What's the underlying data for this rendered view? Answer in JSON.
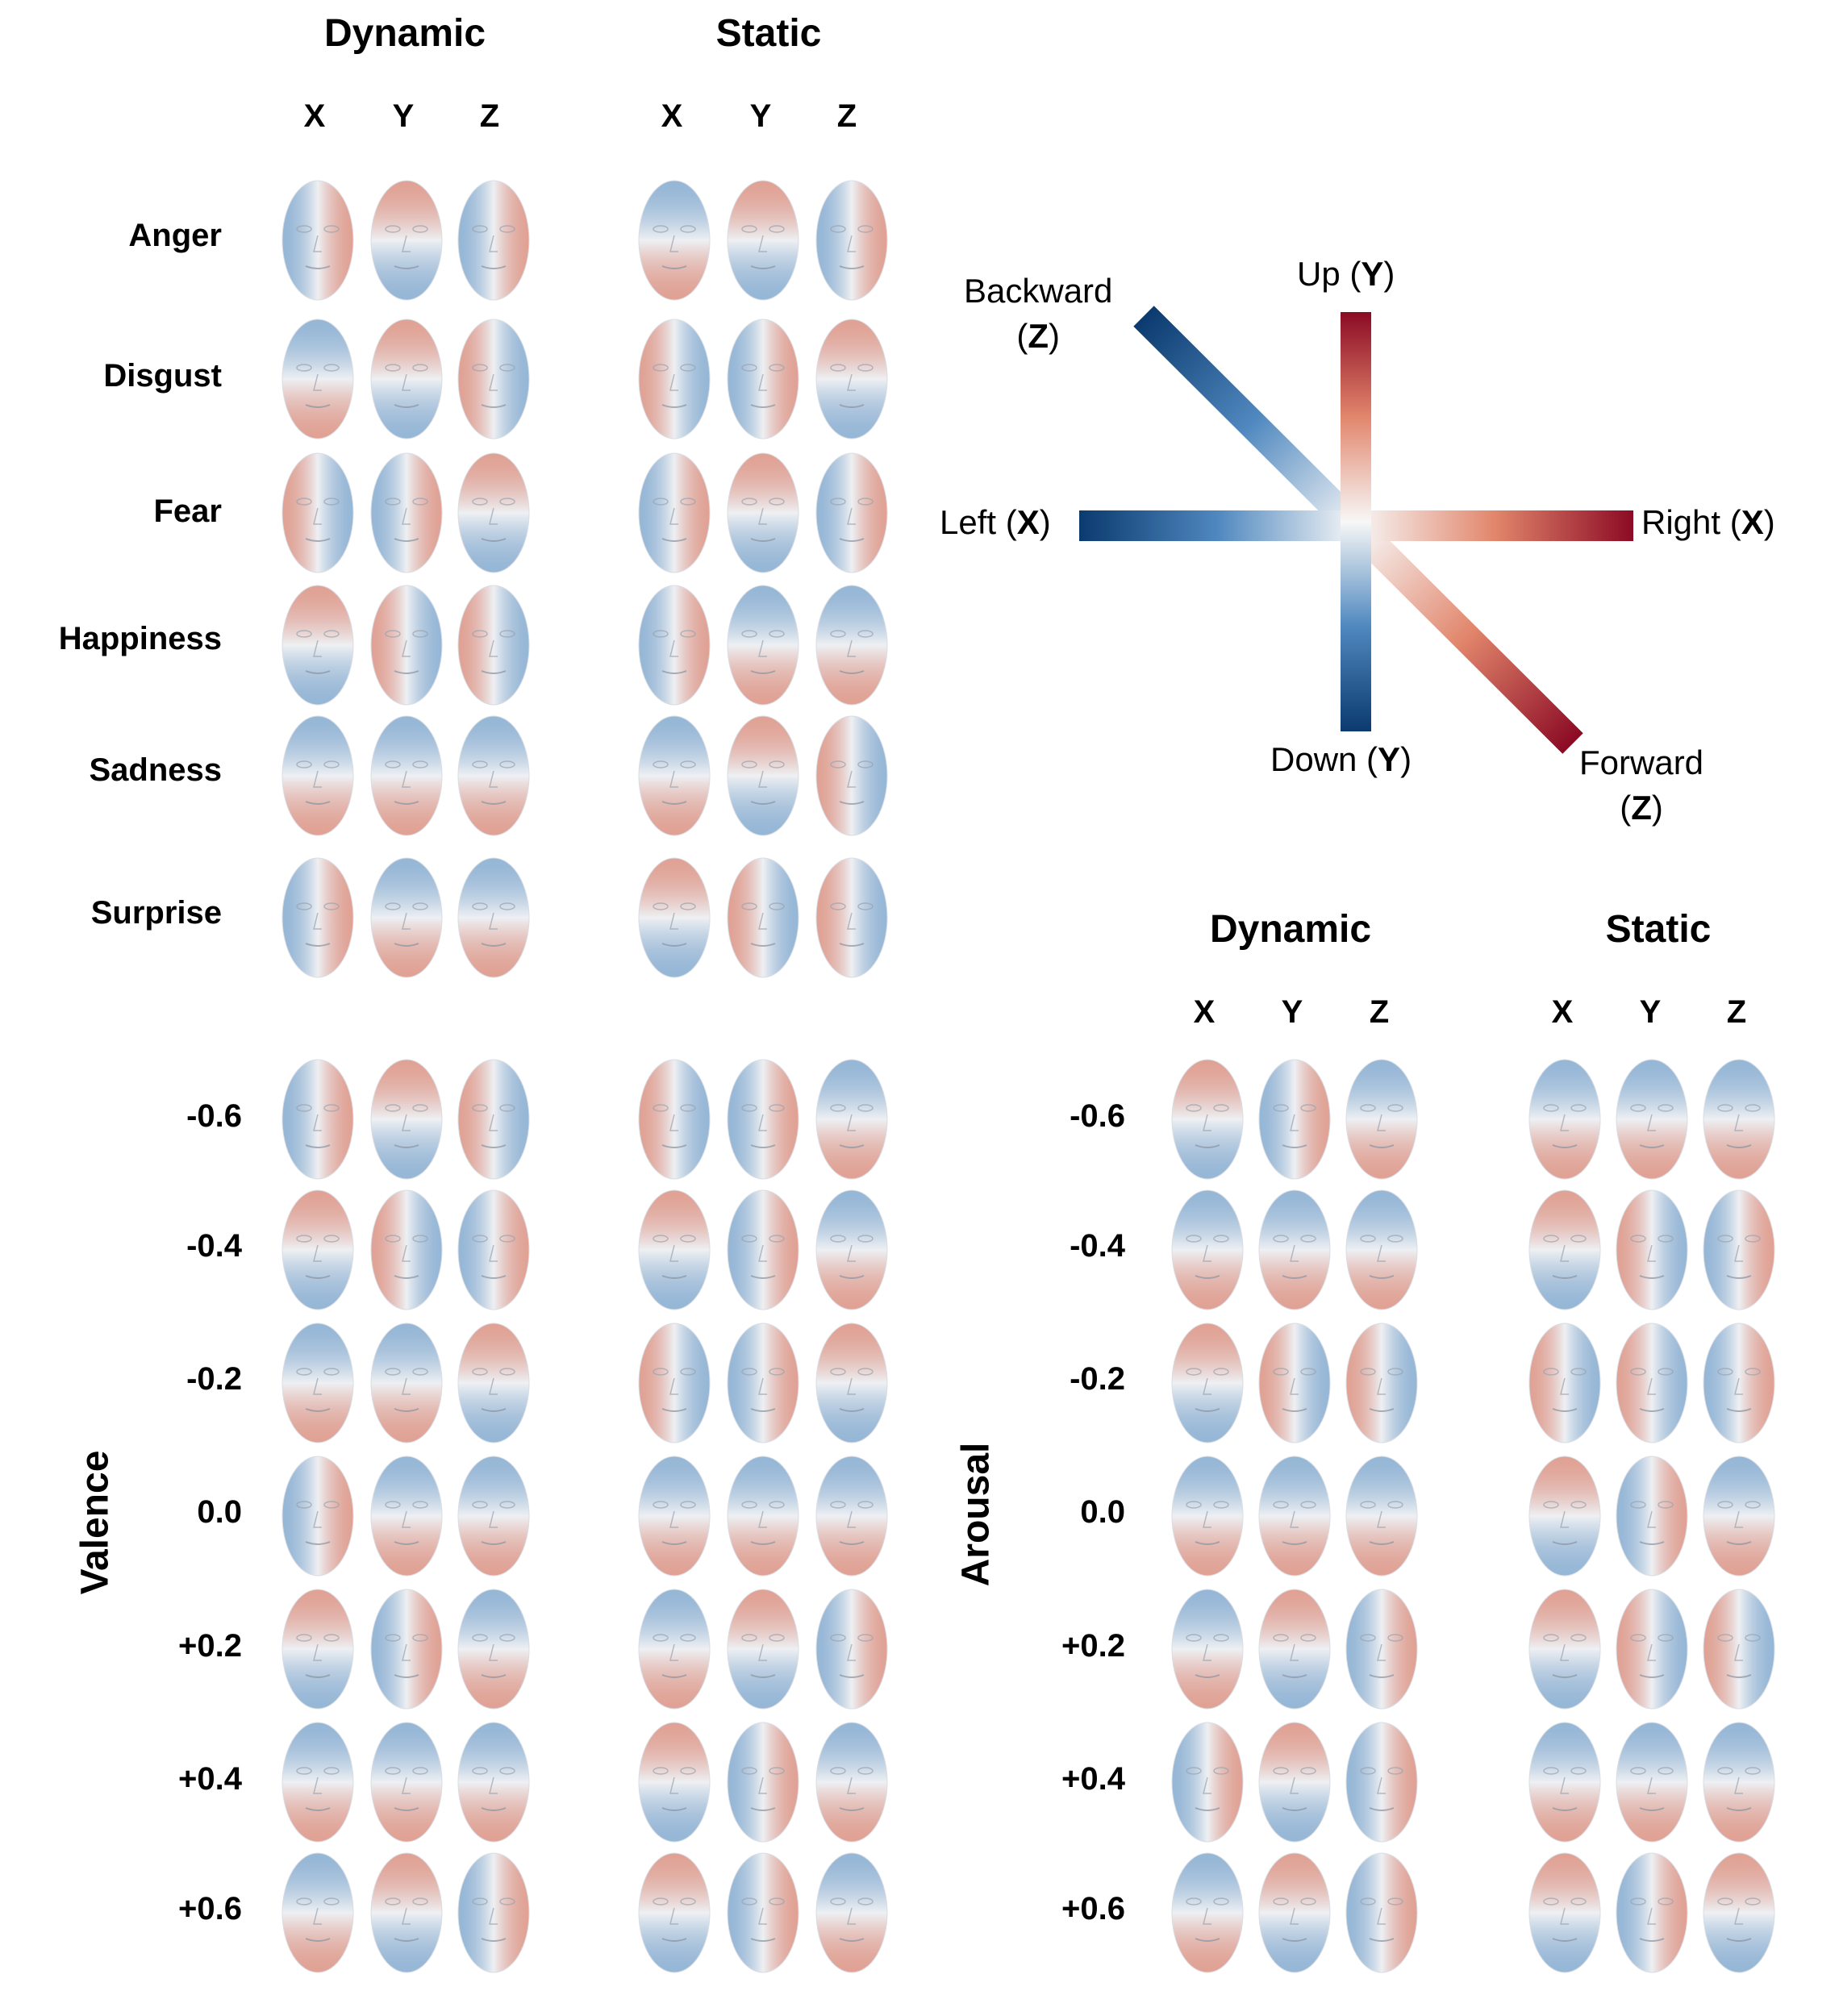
{
  "colors": {
    "red": "#8b0a24",
    "blue": "#0b3a6e",
    "neutral": "#f5f5f5"
  },
  "panels": {
    "emotion": {
      "headers": {
        "dynamic": "Dynamic",
        "static": "Static"
      },
      "axes": [
        "X",
        "Y",
        "Z"
      ],
      "rows": [
        "Anger",
        "Disgust",
        "Fear",
        "Happiness",
        "Sadness",
        "Surprise"
      ]
    },
    "valence": {
      "label": "Valence",
      "rows": [
        "-0.6",
        "-0.4",
        "-0.2",
        "0.0",
        "+0.2",
        "+0.4",
        "+0.6"
      ]
    },
    "arousal": {
      "label": "Arousal",
      "headers": {
        "dynamic": "Dynamic",
        "static": "Static"
      },
      "axes": [
        "X",
        "Y",
        "Z"
      ],
      "rows": [
        "-0.6",
        "-0.4",
        "-0.2",
        "0.0",
        "+0.2",
        "+0.4",
        "+0.6"
      ]
    }
  },
  "key": {
    "up": {
      "text": "Up (",
      "axis": "Y",
      "close": ")"
    },
    "down": {
      "text": "Down (",
      "axis": "Y",
      "close": ")"
    },
    "left": {
      "text": "Left (",
      "axis": "X",
      "close": ")"
    },
    "right": {
      "text": "Right (",
      "axis": "X",
      "close": ")"
    },
    "backward": {
      "text": "Backward",
      "open": "(",
      "axis": "Z",
      "close": ")"
    },
    "forward": {
      "text": "Forward",
      "open": "(",
      "axis": "Z",
      "close": ")"
    }
  }
}
